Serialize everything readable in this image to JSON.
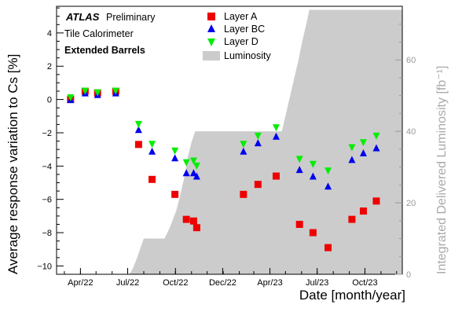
{
  "chart_data": {
    "type": "scatter",
    "annotation": {
      "atlas": "ATLAS",
      "preliminary": "Preliminary",
      "line2": "Tile Calorimeter",
      "line3": "Extended Barrels"
    },
    "xlabel": "Date [month/year]",
    "ylabel": "Average response variation to Cs  [%]",
    "y2label": "Integrated Delivered Luminosity [fb⁻¹]",
    "xlim": [
      "2022-02-14",
      "2023-12-12"
    ],
    "ylim": [
      -10.5,
      5.6
    ],
    "y2lim": [
      0,
      75
    ],
    "x_ticks": [
      {
        "date": "2022-04-01",
        "label": "Apr/22"
      },
      {
        "date": "2022-07-01",
        "label": "Jul/22"
      },
      {
        "date": "2022-10-01",
        "label": "Oct/22"
      },
      {
        "date": "2022-12-31",
        "label": "Dec/22"
      },
      {
        "date": "2023-04-01",
        "label": "Apr/23"
      },
      {
        "date": "2023-07-01",
        "label": "Jul/23"
      },
      {
        "date": "2023-10-01",
        "label": "Oct/23"
      }
    ],
    "y_ticks": [
      -10,
      -8,
      -6,
      -4,
      -2,
      0,
      2,
      4
    ],
    "y2_ticks": [
      0,
      20,
      40,
      60
    ],
    "grid": false,
    "legend_position": "top-center",
    "series": [
      {
        "name": "Layer  A",
        "marker": "square",
        "color": "#ee0000",
        "points": [
          [
            "2022-03-13",
            0.0
          ],
          [
            "2022-04-10",
            0.5
          ],
          [
            "2022-05-04",
            0.4
          ],
          [
            "2022-06-08",
            0.5
          ],
          [
            "2022-07-22",
            -2.7
          ],
          [
            "2022-08-17",
            -4.8
          ],
          [
            "2022-09-30",
            -5.7
          ],
          [
            "2022-10-22",
            -7.2
          ],
          [
            "2022-11-05",
            -7.3
          ],
          [
            "2022-11-11",
            -7.7
          ],
          [
            "2023-02-09",
            -5.7
          ],
          [
            "2023-03-09",
            -5.1
          ],
          [
            "2023-04-13",
            -4.6
          ],
          [
            "2023-05-28",
            -7.5
          ],
          [
            "2023-06-23",
            -8.0
          ],
          [
            "2023-07-22",
            -8.9
          ],
          [
            "2023-09-06",
            -7.2
          ],
          [
            "2023-09-28",
            -6.7
          ],
          [
            "2023-10-23",
            -6.1
          ]
        ]
      },
      {
        "name": "Layer  BC",
        "marker": "triangle-up",
        "color": "#0000ee",
        "points": [
          [
            "2022-03-13",
            0.0
          ],
          [
            "2022-04-10",
            0.4
          ],
          [
            "2022-05-04",
            0.3
          ],
          [
            "2022-06-08",
            0.4
          ],
          [
            "2022-07-22",
            -1.8
          ],
          [
            "2022-08-17",
            -3.1
          ],
          [
            "2022-09-30",
            -3.5
          ],
          [
            "2022-10-22",
            -4.4
          ],
          [
            "2022-11-05",
            -4.4
          ],
          [
            "2022-11-11",
            -4.6
          ],
          [
            "2023-02-09",
            -3.1
          ],
          [
            "2023-03-09",
            -2.6
          ],
          [
            "2023-04-13",
            -2.2
          ],
          [
            "2023-05-28",
            -4.2
          ],
          [
            "2023-06-23",
            -4.6
          ],
          [
            "2023-07-22",
            -5.2
          ],
          [
            "2023-09-06",
            -3.6
          ],
          [
            "2023-09-28",
            -3.2
          ],
          [
            "2023-10-23",
            -2.9
          ]
        ]
      },
      {
        "name": "Layer  D",
        "marker": "triangle-down",
        "color": "#00ee00",
        "points": [
          [
            "2022-03-13",
            0.1
          ],
          [
            "2022-04-10",
            0.5
          ],
          [
            "2022-05-04",
            0.4
          ],
          [
            "2022-06-08",
            0.5
          ],
          [
            "2022-07-22",
            -1.5
          ],
          [
            "2022-08-17",
            -2.7
          ],
          [
            "2022-09-30",
            -3.1
          ],
          [
            "2022-10-22",
            -3.8
          ],
          [
            "2022-11-05",
            -3.7
          ],
          [
            "2022-11-11",
            -4.0
          ],
          [
            "2023-02-09",
            -2.7
          ],
          [
            "2023-03-09",
            -2.2
          ],
          [
            "2023-04-13",
            -1.7
          ],
          [
            "2023-05-28",
            -3.6
          ],
          [
            "2023-06-23",
            -3.9
          ],
          [
            "2023-07-22",
            -4.3
          ],
          [
            "2023-09-06",
            -2.9
          ],
          [
            "2023-09-28",
            -2.6
          ],
          [
            "2023-10-23",
            -2.2
          ]
        ]
      }
    ],
    "luminosity": {
      "name": "Luminosity",
      "type": "area",
      "color": "#cccccc",
      "points": [
        [
          "2022-07-05",
          0
        ],
        [
          "2022-07-12",
          2
        ],
        [
          "2022-07-20",
          5
        ],
        [
          "2022-07-27",
          8
        ],
        [
          "2022-08-01",
          10
        ],
        [
          "2022-09-10",
          10
        ],
        [
          "2022-09-20",
          13
        ],
        [
          "2022-10-03",
          18
        ],
        [
          "2022-10-10",
          22
        ],
        [
          "2022-10-18",
          27
        ],
        [
          "2022-10-25",
          33
        ],
        [
          "2022-11-01",
          37
        ],
        [
          "2022-11-08",
          40
        ],
        [
          "2023-04-24",
          40
        ],
        [
          "2023-05-02",
          45
        ],
        [
          "2023-05-10",
          50
        ],
        [
          "2023-05-18",
          55
        ],
        [
          "2023-05-26",
          60
        ],
        [
          "2023-06-02",
          65
        ],
        [
          "2023-06-10",
          70
        ],
        [
          "2023-06-16",
          74
        ],
        [
          "2023-12-12",
          74
        ]
      ]
    }
  }
}
